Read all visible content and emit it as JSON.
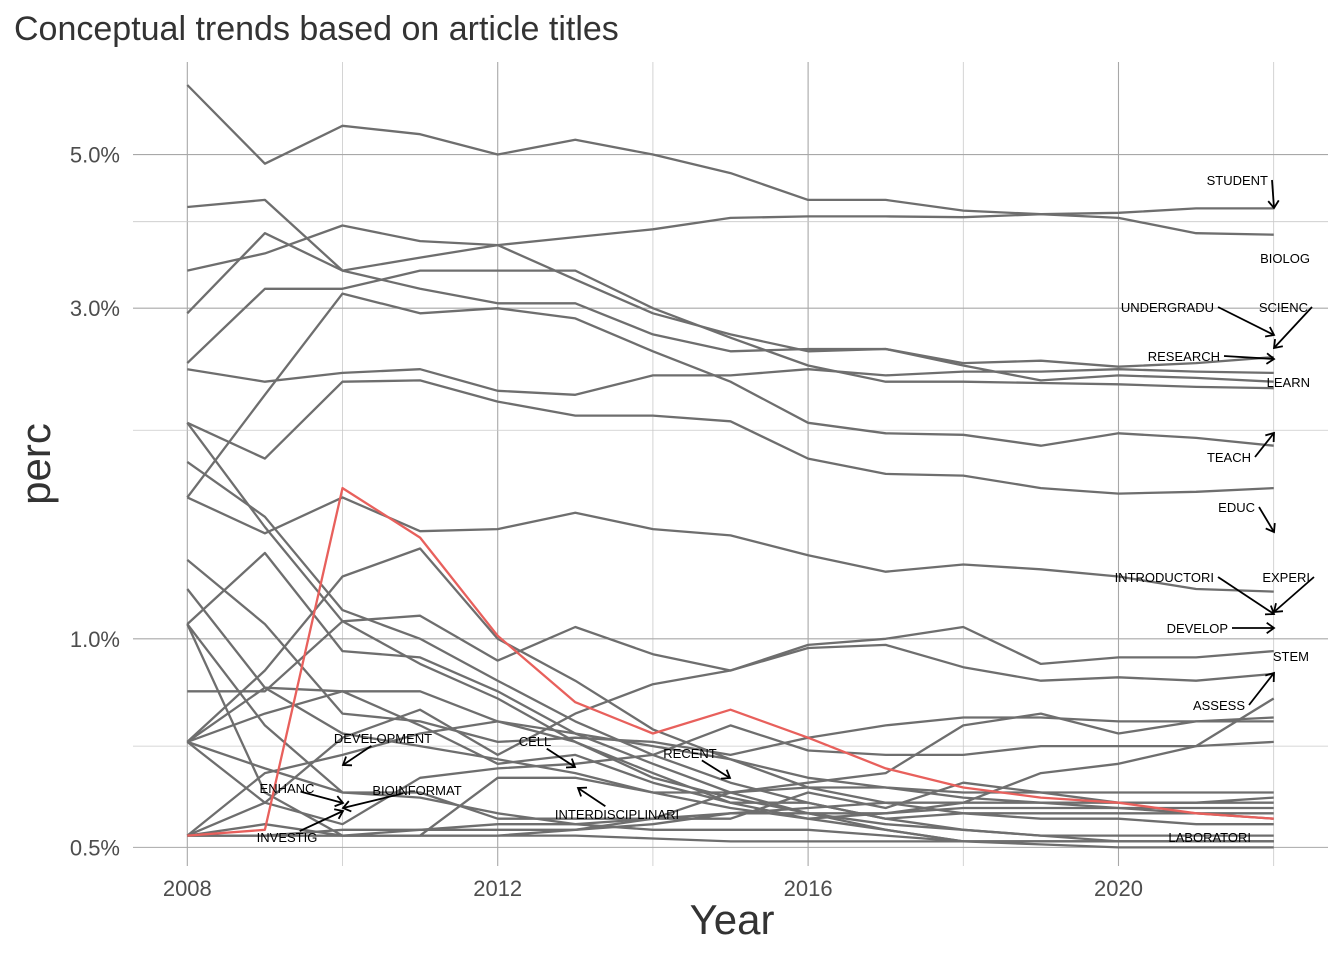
{
  "chart_data": {
    "type": "line",
    "title": "Conceptual trends based on article titles",
    "xlabel": "Year",
    "ylabel": "perc",
    "y_scale": "log",
    "grid": true,
    "x_ticks": [
      "2008",
      "2012",
      "2016",
      "2020"
    ],
    "y_ticks": [
      "0.5%",
      "1.0%",
      "3.0%",
      "5.0%"
    ],
    "xlim": [
      2007.3,
      2022.7
    ],
    "ylim": [
      0.47,
      6.8
    ],
    "highlight_color": "#e8605c",
    "line_color": "#6e6e6e",
    "x": [
      2008,
      2009,
      2010,
      2011,
      2012,
      2013,
      2014,
      2015,
      2016,
      2017,
      2018,
      2019,
      2020,
      2021,
      2022
    ],
    "series": [
      {
        "name": "STUDENT",
        "values": [
          6.3,
          4.85,
          5.5,
          5.35,
          5.0,
          5.25,
          5.0,
          4.7,
          4.3,
          4.3,
          4.15,
          4.1,
          4.05,
          3.85,
          3.83
        ]
      },
      {
        "name": "BIOLOG",
        "values": [
          4.2,
          4.3,
          3.4,
          3.55,
          3.7,
          3.8,
          3.9,
          4.05,
          4.07,
          4.07,
          4.06,
          4.1,
          4.12,
          4.18,
          4.18
        ]
      },
      {
        "name": "SCIENC",
        "values": [
          3.4,
          3.6,
          3.95,
          3.75,
          3.7,
          3.3,
          2.95,
          2.75,
          2.6,
          2.62,
          2.5,
          2.52,
          2.47,
          2.5,
          2.55
        ]
      },
      {
        "name": "UNDERGRADU",
        "values": [
          2.95,
          3.85,
          3.4,
          3.2,
          3.05,
          3.05,
          2.75,
          2.6,
          2.62,
          2.62,
          2.48,
          2.36,
          2.4,
          2.38,
          2.35
        ]
      },
      {
        "name": "RESEARCH",
        "values": [
          2.5,
          3.2,
          3.2,
          3.4,
          3.4,
          3.4,
          3.0,
          2.72,
          2.48,
          2.35,
          2.35,
          2.34,
          2.33,
          2.31,
          2.3
        ]
      },
      {
        "name": "LEARN",
        "values": [
          2.45,
          2.35,
          2.42,
          2.45,
          2.28,
          2.25,
          2.4,
          2.4,
          2.45,
          2.4,
          2.43,
          2.43,
          2.45,
          2.43,
          2.42
        ]
      },
      {
        "name": "TEACH",
        "values": [
          2.05,
          1.82,
          2.35,
          2.36,
          2.2,
          2.1,
          2.1,
          2.06,
          1.82,
          1.73,
          1.72,
          1.65,
          1.62,
          1.63,
          1.65
        ]
      },
      {
        "name": "EDUC",
        "values": [
          1.6,
          2.25,
          3.15,
          2.95,
          3.0,
          2.9,
          2.6,
          2.35,
          2.05,
          1.98,
          1.97,
          1.9,
          1.98,
          1.95,
          1.9
        ]
      },
      {
        "name": "INTRODUCTORI",
        "values": [
          1.6,
          1.42,
          1.6,
          1.43,
          1.44,
          1.52,
          1.44,
          1.41,
          1.32,
          1.25,
          1.28,
          1.26,
          1.23,
          1.18,
          1.17
        ]
      },
      {
        "name": "EXPERI",
        "values": [
          1.3,
          1.05,
          0.78,
          0.76,
          0.71,
          0.72,
          0.71,
          0.68,
          0.72,
          0.75,
          0.77,
          0.77,
          0.76,
          0.76,
          0.76
        ]
      },
      {
        "name": "DEVELOP",
        "values": [
          0.84,
          0.84,
          1.06,
          1.08,
          0.93,
          1.04,
          0.95,
          0.9,
          0.97,
          0.98,
          0.91,
          0.87,
          0.88,
          0.87,
          0.89
        ]
      },
      {
        "name": "ASSESS",
        "values": [
          0.71,
          0.58,
          0.54,
          0.63,
          0.65,
          0.66,
          0.68,
          0.75,
          0.69,
          0.68,
          0.68,
          0.7,
          0.7,
          0.7,
          0.71
        ]
      },
      {
        "name": "STEM",
        "values": [
          0.52,
          0.52,
          0.52,
          0.53,
          0.53,
          0.53,
          0.54,
          0.56,
          0.56,
          0.56,
          0.58,
          0.64,
          0.66,
          0.7,
          0.82
        ]
      },
      {
        "name": "LABORATORI",
        "values": [
          0.52,
          0.52,
          0.52,
          0.52,
          0.52,
          0.52,
          0.515,
          0.51,
          0.51,
          0.51,
          0.51,
          0.505,
          0.5,
          0.5,
          0.5
        ]
      },
      {
        "name": "DEVELOPMENT",
        "values": [
          0.52,
          0.58,
          0.72,
          0.79,
          0.68,
          0.78,
          0.86,
          0.9,
          0.98,
          1.0,
          1.04,
          0.92,
          0.94,
          0.94,
          0.96
        ]
      },
      {
        "name": "CELL",
        "values": [
          0.52,
          0.54,
          0.52,
          0.52,
          0.63,
          0.63,
          0.6,
          0.6,
          0.62,
          0.64,
          0.75,
          0.78,
          0.73,
          0.76,
          0.77
        ]
      },
      {
        "name": "BIOINFORMAT",
        "values": [
          0.71,
          0.85,
          0.84,
          0.84,
          0.76,
          0.71,
          0.64,
          0.58,
          0.58,
          0.55,
          0.56,
          0.56,
          0.56,
          0.56,
          0.55
        ]
      },
      {
        "name": "RECENT",
        "values": [
          1.18,
          0.85,
          0.73,
          0.7,
          0.67,
          0.64,
          0.6,
          0.57,
          0.55,
          0.53,
          0.51,
          0.51,
          0.51,
          0.51,
          0.51
        ]
      },
      {
        "name": "INTERDISCIPLINARI",
        "values": [
          1.05,
          1.33,
          0.96,
          0.94,
          0.84,
          0.73,
          0.66,
          0.6,
          0.56,
          0.53,
          0.51,
          0.51,
          0.51,
          0.51,
          0.51
        ]
      },
      {
        "name": "ENHANC",
        "values": [
          1.05,
          0.75,
          0.6,
          0.59,
          0.56,
          0.54,
          0.53,
          0.53,
          0.53,
          0.52,
          0.51,
          0.51,
          0.51,
          0.51,
          0.51
        ]
      },
      {
        "name": "INVESTIG",
        "values": [
          0.52,
          0.64,
          0.68,
          0.73,
          0.76,
          0.73,
          0.7,
          0.67,
          0.63,
          0.61,
          0.59,
          0.58,
          0.57,
          0.56,
          0.56
        ]
      },
      {
        "name": "",
        "values": [
          1.8,
          1.5,
          1.1,
          1.0,
          0.87,
          0.76,
          0.68,
          0.62,
          0.58,
          0.55,
          0.53,
          0.52,
          0.51,
          0.51,
          0.51
        ]
      },
      {
        "name": "",
        "values": [
          0.71,
          0.9,
          1.23,
          1.35,
          1.0,
          0.87,
          0.74,
          0.67,
          0.61,
          0.58,
          0.56,
          0.55,
          0.55,
          0.54,
          0.54
        ]
      },
      {
        "name": "",
        "values": [
          1.05,
          0.6,
          0.52,
          0.52,
          0.52,
          0.53,
          0.55,
          0.6,
          0.61,
          0.61,
          0.6,
          0.6,
          0.6,
          0.6,
          0.6
        ]
      },
      {
        "name": "",
        "values": [
          0.71,
          0.65,
          0.6,
          0.6,
          0.55,
          0.55,
          0.55,
          0.55,
          0.6,
          0.57,
          0.62,
          0.6,
          0.58,
          0.58,
          0.59
        ]
      },
      {
        "name": "",
        "values": [
          0.71,
          0.78,
          0.84,
          0.75,
          0.66,
          0.68,
          0.62,
          0.58,
          0.55,
          0.56,
          0.57,
          0.57,
          0.57,
          0.57,
          0.57
        ]
      },
      {
        "name": "",
        "values": [
          2.05,
          1.45,
          1.06,
          0.92,
          0.82,
          0.71,
          0.63,
          0.59,
          0.56,
          0.54,
          0.53,
          0.52,
          0.52,
          0.52,
          0.52
        ]
      },
      {
        "name": "",
        "values": [
          0.52,
          0.52,
          0.53,
          0.53,
          0.54,
          0.54,
          0.55,
          0.56,
          0.57,
          0.58,
          0.58,
          0.58,
          0.58,
          0.58,
          0.58
        ]
      },
      {
        "name": "",
        "values": [
          0.52,
          0.53,
          1.65,
          1.4,
          1.01,
          0.81,
          0.73,
          0.79,
          0.72,
          0.65,
          0.61,
          0.59,
          0.58,
          0.56,
          0.55
        ],
        "highlight": true
      }
    ],
    "annotations": [
      {
        "label": "STUDENT"
      },
      {
        "label": "BIOLOG"
      },
      {
        "label": "SCIENC"
      },
      {
        "label": "UNDERGRADU"
      },
      {
        "label": "RESEARCH"
      },
      {
        "label": "LEARN"
      },
      {
        "label": "TEACH"
      },
      {
        "label": "EDUC"
      },
      {
        "label": "INTRODUCTORI"
      },
      {
        "label": "EXPERI"
      },
      {
        "label": "DEVELOP"
      },
      {
        "label": "STEM"
      },
      {
        "label": "ASSESS"
      },
      {
        "label": "LABORATORI"
      },
      {
        "label": "DEVELOPMENT"
      },
      {
        "label": "CELL"
      },
      {
        "label": "RECENT"
      },
      {
        "label": "ENHANC"
      },
      {
        "label": "BIOINFORMAT"
      },
      {
        "label": "INTERDISCIPLINARI"
      },
      {
        "label": "INVESTIG"
      }
    ]
  }
}
